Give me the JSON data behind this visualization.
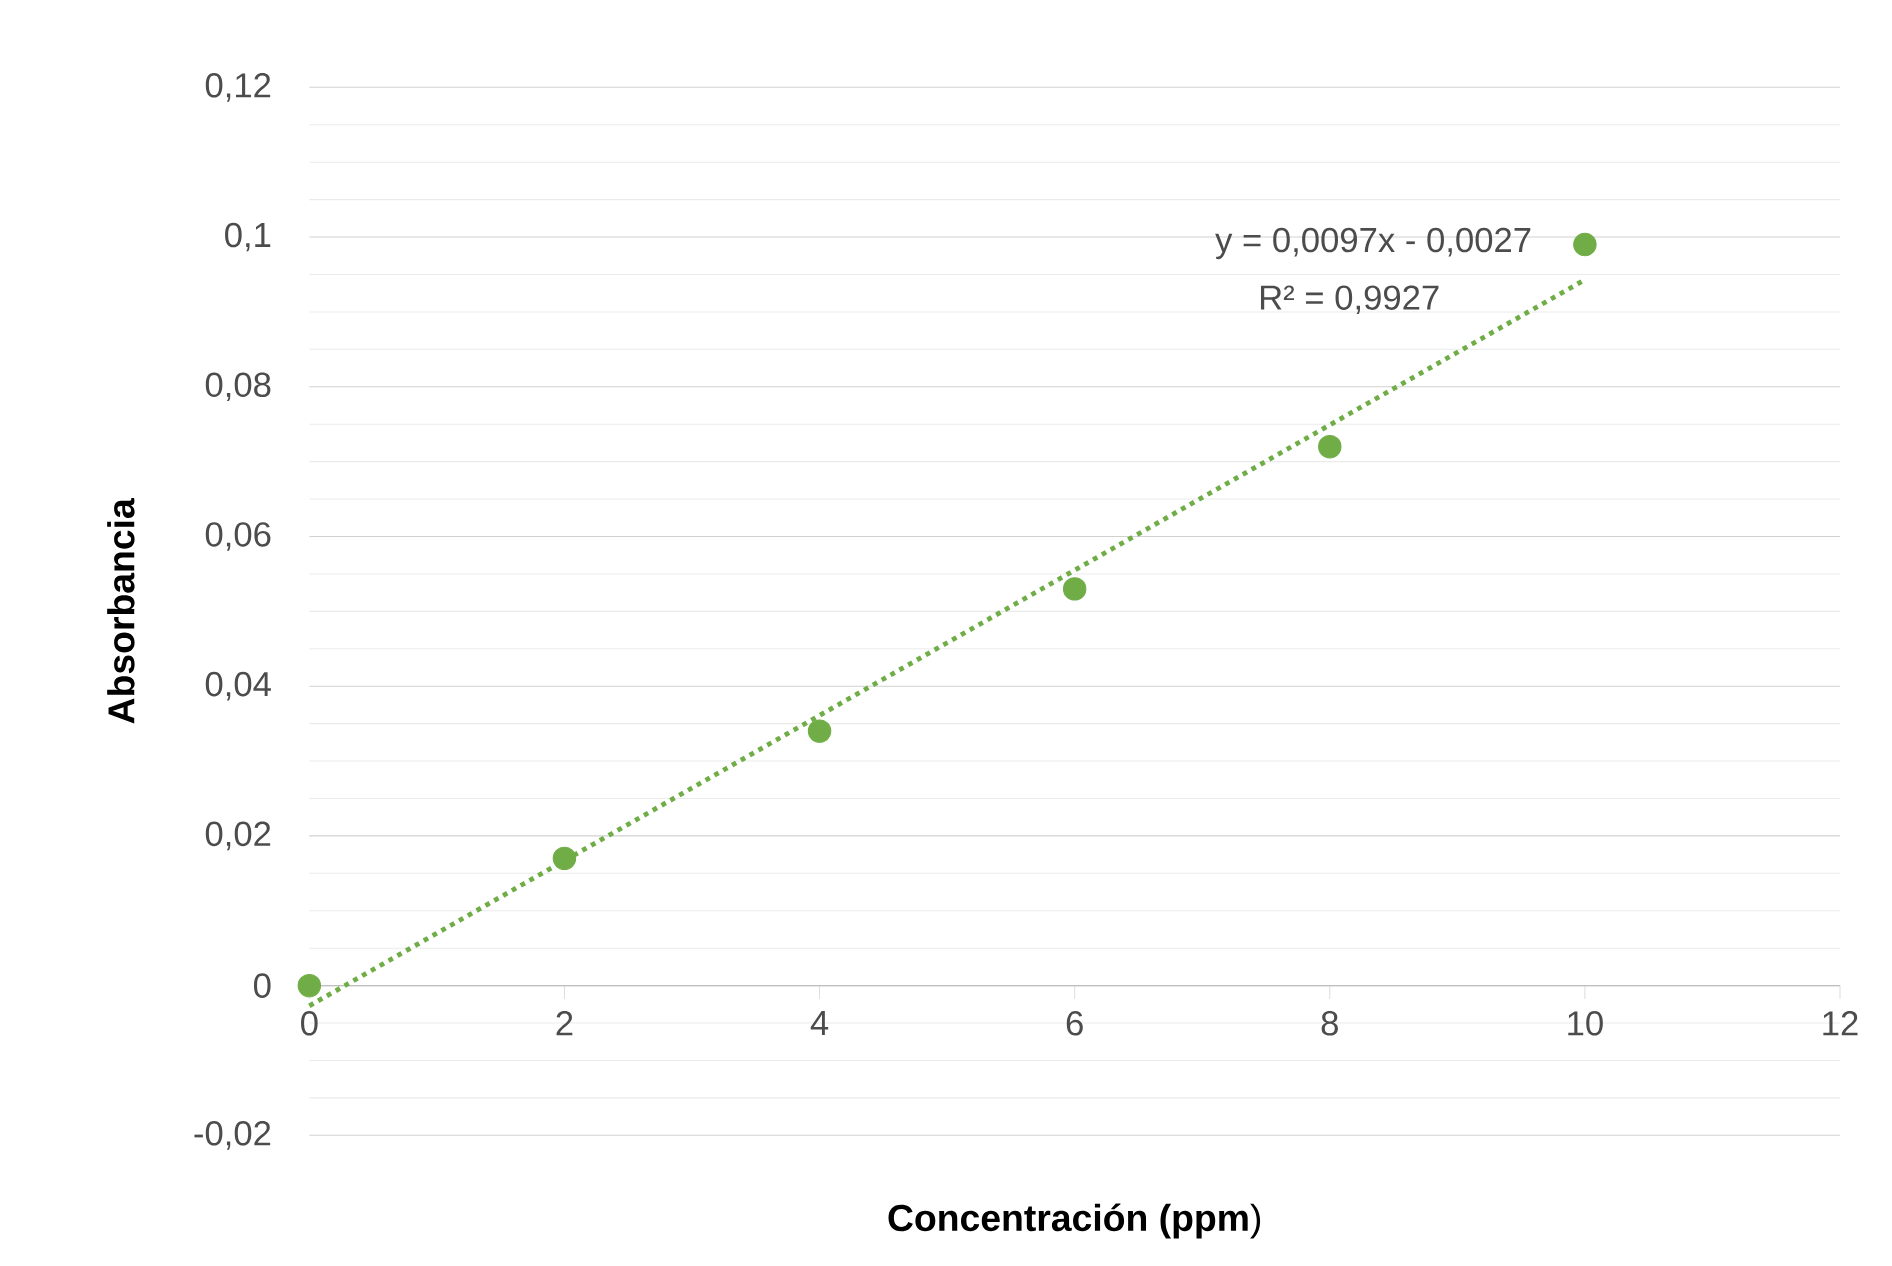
{
  "chart_data": {
    "type": "scatter",
    "xlabel": "**Concentración (ppm**)",
    "ylabel": "Absorbancia",
    "series": [
      {
        "color": "#70ad47",
        "x": [
          0,
          2,
          4,
          6,
          8,
          10
        ],
        "values": [
          0,
          0.017,
          0.034,
          0.053,
          0.072,
          0.099
        ],
        "marker": "circle"
      },
      {
        "type": "line",
        "color": "#70ad47",
        "x": [
          0,
          10
        ],
        "values": [
          -0.0027,
          0.0943
        ],
        "line_style": "dotted",
        "marker": "none"
      }
    ],
    "annotations": [
      "y = 0,0097x - 0,0027",
      "R² = 0,9927"
    ],
    "xlim": [
      0,
      12
    ],
    "xticks": [
      0,
      2,
      4,
      6,
      8,
      10,
      12
    ],
    "ylim": [
      -0.02,
      0.12
    ],
    "yticks": [
      {
        "value": -0.02,
        "label": "-0,02"
      },
      {
        "value": 0,
        "label": "0"
      },
      {
        "value": 0.02,
        "label": "0,02"
      },
      {
        "value": 0.04,
        "label": "0,04"
      },
      {
        "value": 0.06,
        "label": "0,06"
      },
      {
        "value": 0.08,
        "label": "0,08"
      },
      {
        "value": 0.1,
        "label": "0,1"
      },
      {
        "value": 0.12,
        "label": "0,12"
      }
    ],
    "grid": "y"
  }
}
